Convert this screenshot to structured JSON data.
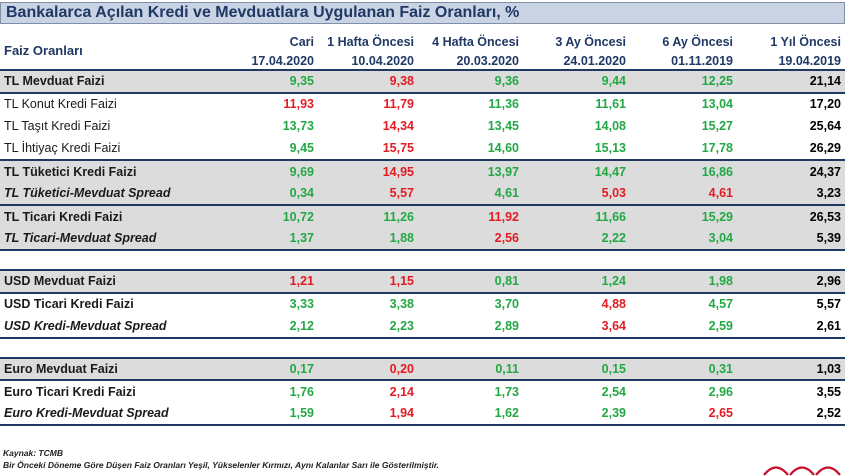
{
  "title": "Bankalarca Açılan Kredi ve Mevduatlara Uygulanan Faiz Oranları, %",
  "header": {
    "row_label": "Faiz Oranları",
    "columns": [
      "Cari",
      "1 Hafta Öncesi",
      "4 Hafta Öncesi",
      "3 Ay Öncesi",
      "6 Ay Öncesi",
      "1 Yıl Öncesi"
    ],
    "dates": [
      "17.04.2020",
      "10.04.2020",
      "20.03.2020",
      "24.01.2020",
      "01.11.2019",
      "19.04.2019"
    ]
  },
  "rows": [
    {
      "label": "TL Mevduat Faizi",
      "values": [
        "9,35",
        "9,38",
        "9,36",
        "9,44",
        "12,25",
        "21,14"
      ],
      "colors": [
        "g",
        "r",
        "g",
        "g",
        "g",
        "k"
      ]
    },
    {
      "label": "TL Konut Kredi Faizi",
      "values": [
        "11,93",
        "11,79",
        "11,36",
        "11,61",
        "13,04",
        "17,20"
      ],
      "colors": [
        "r",
        "r",
        "g",
        "g",
        "g",
        "k"
      ]
    },
    {
      "label": "TL Taşıt Kredi Faizi",
      "values": [
        "13,73",
        "14,34",
        "13,45",
        "14,08",
        "15,27",
        "25,64"
      ],
      "colors": [
        "g",
        "r",
        "g",
        "g",
        "g",
        "k"
      ]
    },
    {
      "label": "TL İhtiyaç Kredi Faizi",
      "values": [
        "9,45",
        "15,75",
        "14,60",
        "15,13",
        "17,78",
        "26,29"
      ],
      "colors": [
        "g",
        "r",
        "g",
        "g",
        "g",
        "k"
      ]
    },
    {
      "label": "TL Tüketici Kredi Faizi",
      "values": [
        "9,69",
        "14,95",
        "13,97",
        "14,47",
        "16,86",
        "24,37"
      ],
      "colors": [
        "g",
        "r",
        "g",
        "g",
        "g",
        "k"
      ]
    },
    {
      "label": "TL Tüketici-Mevduat Spread",
      "values": [
        "0,34",
        "5,57",
        "4,61",
        "5,03",
        "4,61",
        "3,23"
      ],
      "colors": [
        "g",
        "r",
        "g",
        "r",
        "r",
        "k"
      ]
    },
    {
      "label": "TL Ticari Kredi Faizi",
      "values": [
        "10,72",
        "11,26",
        "11,92",
        "11,66",
        "15,29",
        "26,53"
      ],
      "colors": [
        "g",
        "g",
        "r",
        "g",
        "g",
        "k"
      ]
    },
    {
      "label": "TL Ticari-Mevduat Spread",
      "values": [
        "1,37",
        "1,88",
        "2,56",
        "2,22",
        "3,04",
        "5,39"
      ],
      "colors": [
        "g",
        "g",
        "r",
        "g",
        "g",
        "k"
      ]
    },
    {
      "label": "USD Mevduat Faizi",
      "values": [
        "1,21",
        "1,15",
        "0,81",
        "1,24",
        "1,98",
        "2,96"
      ],
      "colors": [
        "r",
        "r",
        "g",
        "g",
        "g",
        "k"
      ]
    },
    {
      "label": "USD Ticari Kredi Faizi",
      "values": [
        "3,33",
        "3,38",
        "3,70",
        "4,88",
        "4,57",
        "5,57"
      ],
      "colors": [
        "g",
        "g",
        "g",
        "r",
        "g",
        "k"
      ]
    },
    {
      "label": "USD Kredi-Mevduat Spread",
      "values": [
        "2,12",
        "2,23",
        "2,89",
        "3,64",
        "2,59",
        "2,61"
      ],
      "colors": [
        "g",
        "g",
        "g",
        "r",
        "g",
        "k"
      ]
    },
    {
      "label": "Euro Mevduat Faizi",
      "values": [
        "0,17",
        "0,20",
        "0,11",
        "0,15",
        "0,31",
        "1,03"
      ],
      "colors": [
        "g",
        "r",
        "g",
        "g",
        "g",
        "k"
      ]
    },
    {
      "label": "Euro Ticari Kredi Faizi",
      "values": [
        "1,76",
        "2,14",
        "1,73",
        "2,54",
        "2,96",
        "3,55"
      ],
      "colors": [
        "g",
        "r",
        "g",
        "g",
        "g",
        "k"
      ]
    },
    {
      "label": "Euro Kredi-Mevduat Spread",
      "values": [
        "1,59",
        "1,94",
        "1,62",
        "2,39",
        "2,65",
        "2,52"
      ],
      "colors": [
        "g",
        "r",
        "g",
        "g",
        "r",
        "k"
      ]
    }
  ],
  "footer": {
    "source": "Kaynak: TCMB",
    "note": "Bir Önceki Döneme Göre Düşen Faiz Oranları Yeşil, Yükselenler Kırmızı, Aynı Kalanlar Sarı ile Gösterilmiştir."
  },
  "colors": {
    "green": "#22a845",
    "red": "#e31b23",
    "title_bg": "#c9d3e4",
    "header_text": "#1f3864",
    "row_gray": "#dcdcdc"
  }
}
